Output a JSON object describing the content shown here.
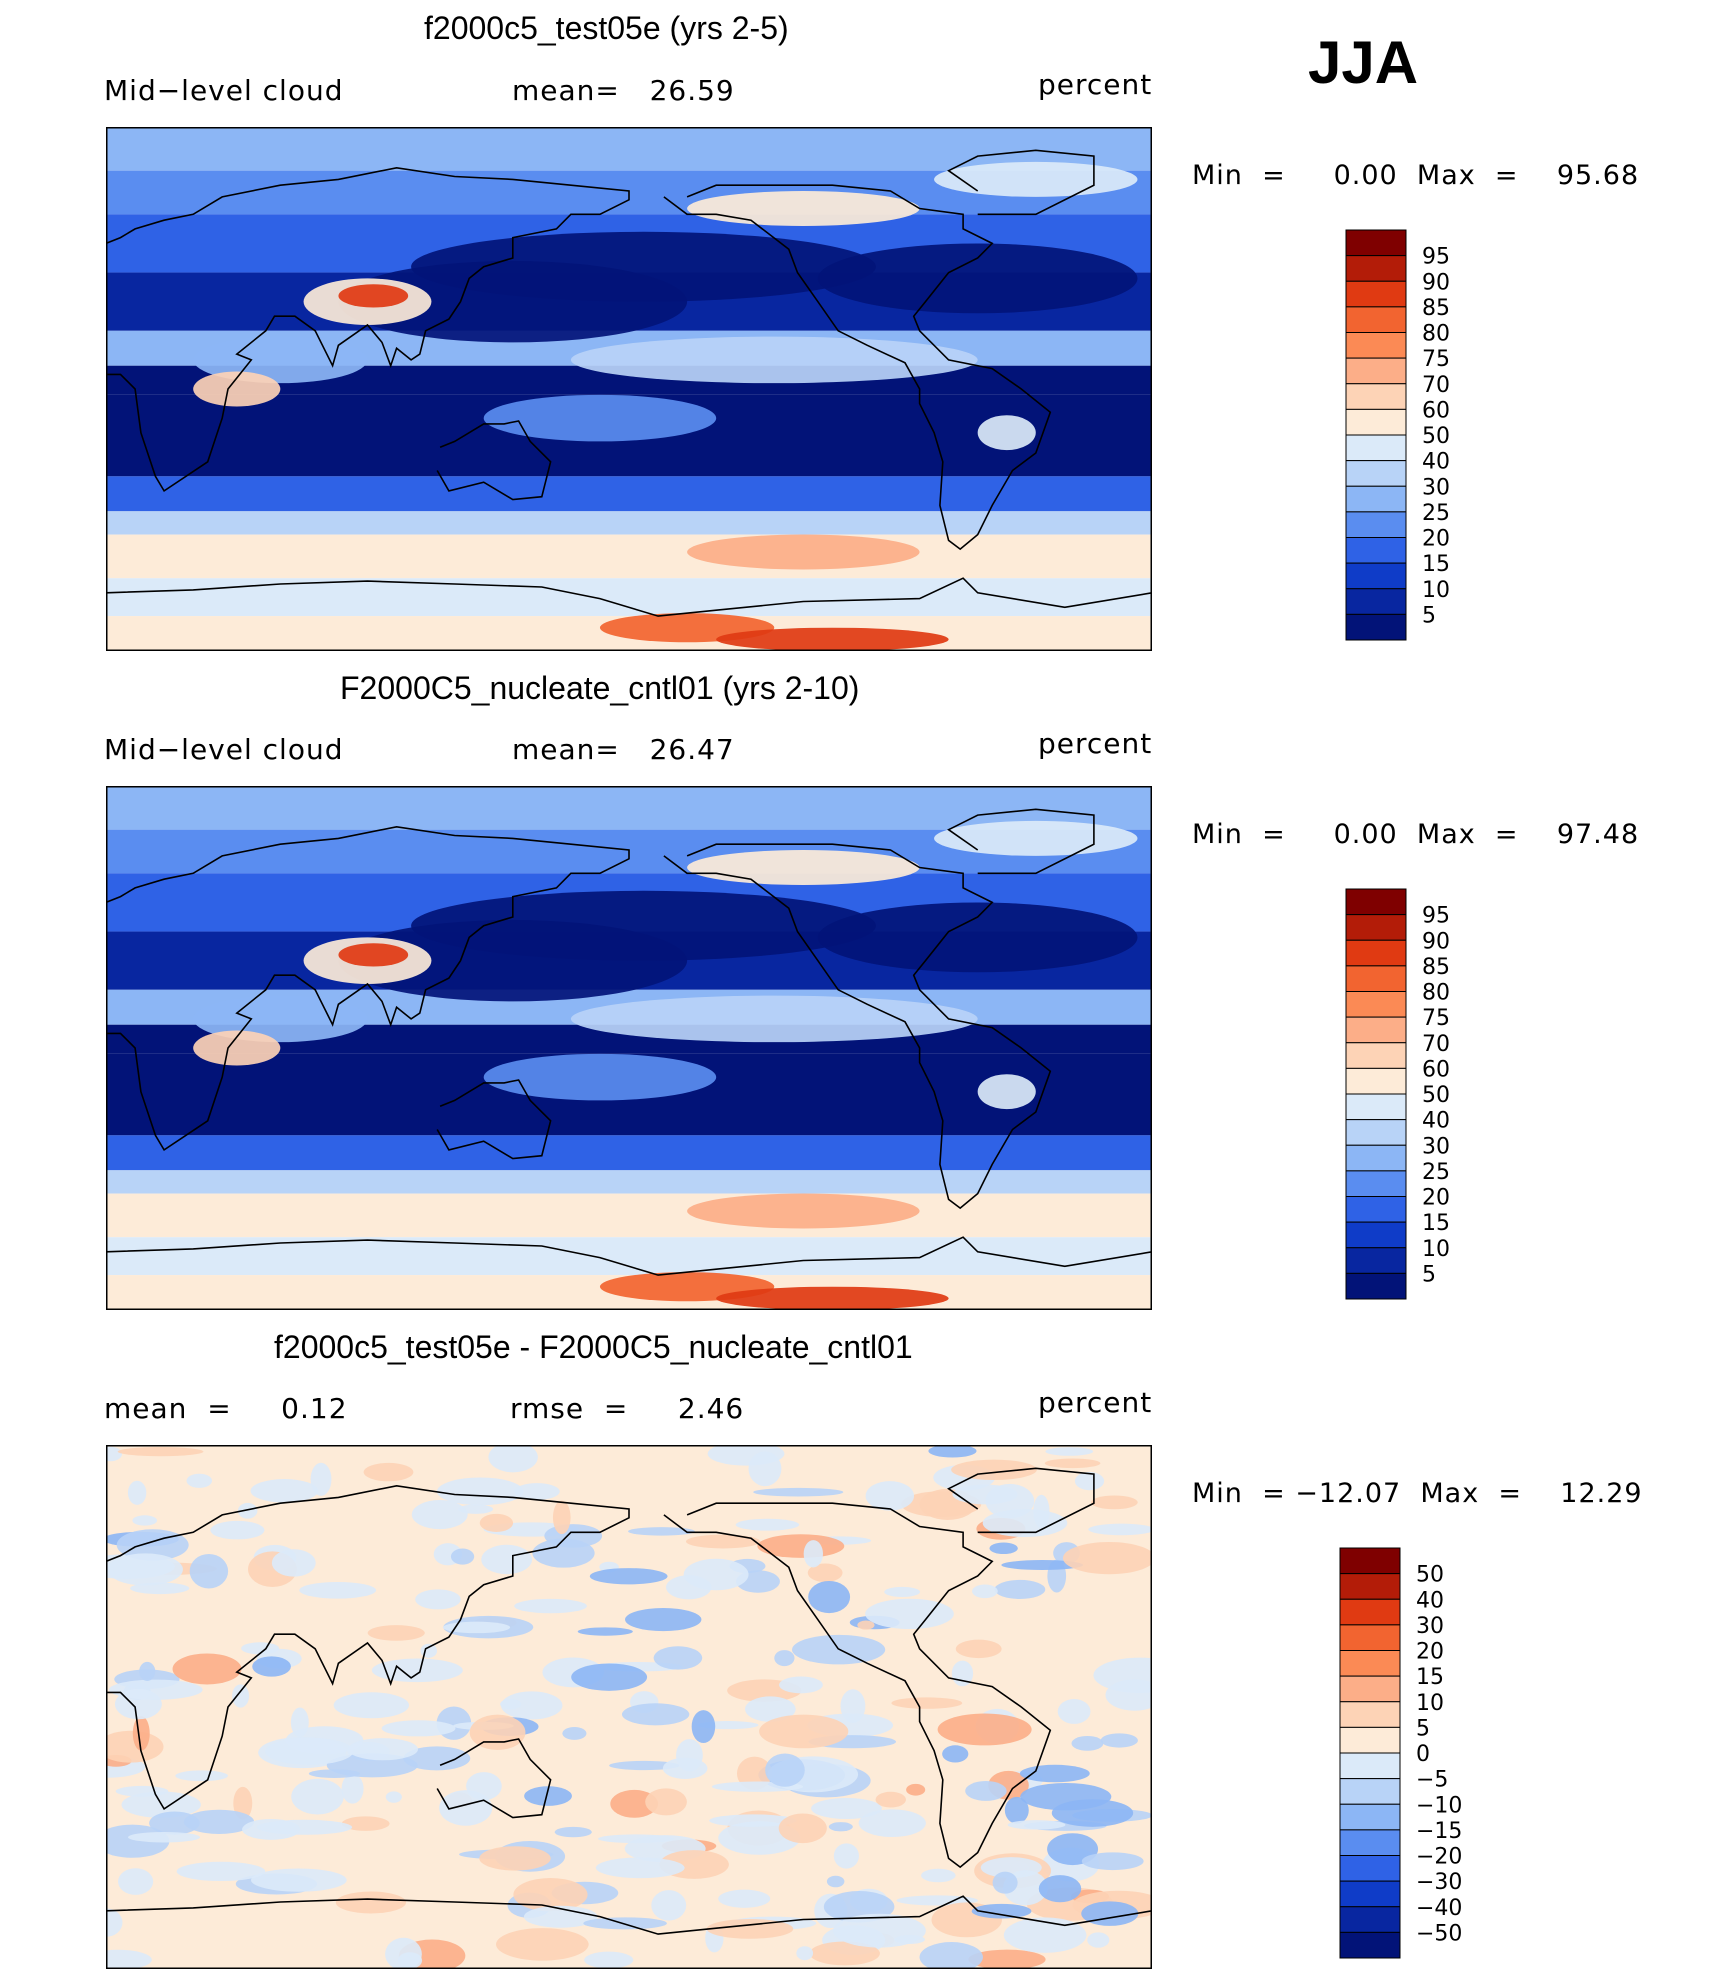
{
  "season": "JJA",
  "panels": [
    {
      "title": "f2000c5_test05e (yrs 2-5)",
      "left_text": "Mid−level cloud",
      "center_text": "mean=   26.59",
      "right_text": "percent",
      "minmax_text": "Min  =     0.00  Max  =    95.68",
      "colorbar": {
        "labels": [
          "95",
          "90",
          "85",
          "80",
          "75",
          "70",
          "60",
          "50",
          "40",
          "30",
          "25",
          "20",
          "15",
          "10",
          "5"
        ],
        "colors": [
          "#7f0000",
          "#b31c08",
          "#e03a12",
          "#f26430",
          "#fb8a55",
          "#fcae88",
          "#fdd3b6",
          "#fdebd8",
          "#dbeaf9",
          "#b8d3f7",
          "#8cb6f5",
          "#5a8df0",
          "#2f62e6",
          "#0f3cc8",
          "#0826a0",
          "#021378"
        ]
      },
      "map_style": "field"
    },
    {
      "title": "F2000C5_nucleate_cntl01 (yrs 2-10)",
      "left_text": "Mid−level cloud",
      "center_text": "mean=   26.47",
      "right_text": "percent",
      "minmax_text": "Min  =     0.00  Max  =    97.48",
      "colorbar": {
        "labels": [
          "95",
          "90",
          "85",
          "80",
          "75",
          "70",
          "60",
          "50",
          "40",
          "30",
          "25",
          "20",
          "15",
          "10",
          "5"
        ],
        "colors": [
          "#7f0000",
          "#b31c08",
          "#e03a12",
          "#f26430",
          "#fb8a55",
          "#fcae88",
          "#fdd3b6",
          "#fdebd8",
          "#dbeaf9",
          "#b8d3f7",
          "#8cb6f5",
          "#5a8df0",
          "#2f62e6",
          "#0f3cc8",
          "#0826a0",
          "#021378"
        ]
      },
      "map_style": "field"
    },
    {
      "title": "f2000c5_test05e - F2000C5_nucleate_cntl01",
      "left_text": "mean  =     0.12",
      "center_text": "rmse  =     2.46",
      "right_text": "percent",
      "minmax_text": "Min  = −12.07  Max  =    12.29",
      "colorbar": {
        "labels": [
          "50",
          "40",
          "30",
          "20",
          "15",
          "10",
          "5",
          "0",
          "−5",
          "−10",
          "−15",
          "−20",
          "−30",
          "−40",
          "−50"
        ],
        "colors": [
          "#7f0000",
          "#b31c08",
          "#e03a12",
          "#f26430",
          "#fb8a55",
          "#fcae88",
          "#fdd3b6",
          "#fdebd8",
          "#dbeaf9",
          "#b8d3f7",
          "#8cb6f5",
          "#5a8df0",
          "#2f62e6",
          "#0f3cc8",
          "#0826a0",
          "#021378"
        ]
      },
      "map_style": "diff"
    }
  ]
}
